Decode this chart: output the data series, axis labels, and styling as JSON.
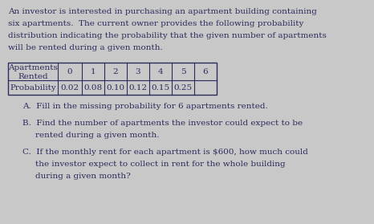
{
  "intro_text": [
    "An investor is interested in purchasing an apartment building containing",
    "six apartments.  The current owner provides the following probability",
    "distribution indicating the probability that the given number of apartments",
    "will be rented during a given month."
  ],
  "table_header_row1": [
    "Apartments",
    "0",
    "1",
    "2",
    "3",
    "4",
    "5",
    "6"
  ],
  "table_header_row2_label": "Rented",
  "table_data_label": "Probability",
  "table_data_values": [
    "0.02",
    "0.08",
    "0.10",
    "0.12",
    "0.15",
    "0.25",
    ""
  ],
  "question_a": "A.  Fill in the missing probability for 6 apartments rented.",
  "question_b_line1": "B.  Find the number of apartments the investor could expect to be",
  "question_b_line2": "rented during a given month.",
  "question_c_line1": "C.  If the monthly rent for each apartment is $600, how much could",
  "question_c_line2": "the investor expect to collect in rent for the whole building",
  "question_c_line3": "during a given month?",
  "bg_color": "#c8c8c8",
  "text_color": "#2c2c5e",
  "font_size": 7.5,
  "table_font_size": 7.5
}
